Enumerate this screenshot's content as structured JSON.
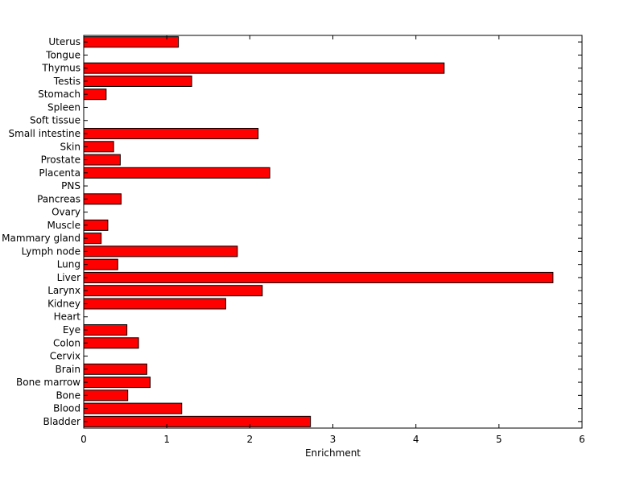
{
  "chart_data": {
    "type": "bar",
    "orientation": "horizontal",
    "title": "",
    "xlabel": "Enrichment",
    "ylabel": "",
    "xlim": [
      0,
      6
    ],
    "xticks": [
      0,
      1,
      2,
      3,
      4,
      5,
      6
    ],
    "grid": false,
    "bar_color": "#ff0000",
    "categories": [
      "Bladder",
      "Blood",
      "Bone",
      "Bone marrow",
      "Brain",
      "Cervix",
      "Colon",
      "Eye",
      "Heart",
      "Kidney",
      "Larynx",
      "Liver",
      "Lung",
      "Lymph node",
      "Mammary gland",
      "Muscle",
      "Ovary",
      "Pancreas",
      "PNS",
      "Placenta",
      "Prostate",
      "Skin",
      "Small intestine",
      "Soft tissue",
      "Spleen",
      "Stomach",
      "Testis",
      "Thymus",
      "Tongue",
      "Uterus"
    ],
    "values": [
      2.73,
      1.18,
      0.53,
      0.8,
      0.76,
      0.0,
      0.66,
      0.52,
      0.0,
      1.71,
      2.15,
      5.65,
      0.41,
      1.85,
      0.21,
      0.29,
      0.0,
      0.45,
      0.0,
      2.24,
      0.44,
      0.36,
      2.1,
      0.0,
      0.0,
      0.27,
      1.3,
      4.34,
      0.0,
      1.14
    ]
  }
}
